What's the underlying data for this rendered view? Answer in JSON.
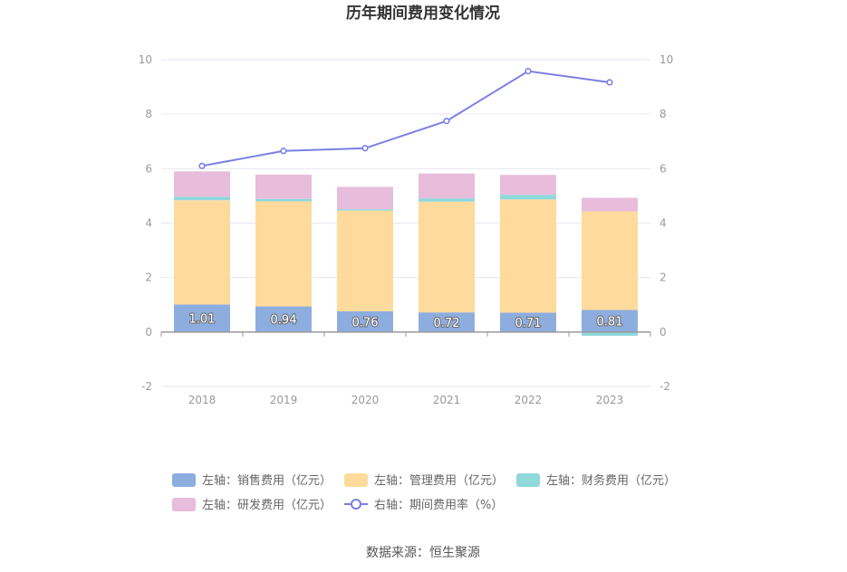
{
  "chart_data": {
    "type": "bar",
    "stacked": true,
    "title": "历年期间费用变化情况",
    "categories": [
      "2018",
      "2019",
      "2020",
      "2021",
      "2022",
      "2023"
    ],
    "y_left": {
      "min": -2,
      "max": 10,
      "ticks": [
        -2,
        0,
        2,
        4,
        6,
        8,
        10
      ]
    },
    "y_right": {
      "min": -2,
      "max": 10,
      "ticks": [
        -2,
        0,
        2,
        4,
        6,
        8,
        10
      ]
    },
    "grid": true,
    "legend_position": "bottom",
    "series": [
      {
        "name": "左轴：销售费用（亿元）",
        "type": "bar",
        "axis": "left",
        "color": "#8eaddf",
        "values": [
          1.01,
          0.94,
          0.76,
          0.72,
          0.71,
          0.81
        ],
        "show_labels": true
      },
      {
        "name": "左轴：管理费用（亿元）",
        "type": "bar",
        "axis": "left",
        "color": "#fedb9c",
        "values": [
          3.83,
          3.86,
          3.7,
          4.07,
          4.16,
          3.62
        ],
        "show_labels": false
      },
      {
        "name": "左轴：财务费用（亿元）",
        "type": "bar",
        "axis": "left",
        "color": "#8fd8dc",
        "values": [
          0.13,
          0.09,
          0.05,
          0.12,
          0.17,
          -0.14
        ],
        "show_labels": false
      },
      {
        "name": "左轴：研发费用（亿元）",
        "type": "bar",
        "axis": "left",
        "color": "#e8bcdb",
        "values": [
          0.93,
          0.89,
          0.82,
          0.91,
          0.73,
          0.5
        ],
        "show_labels": false
      },
      {
        "name": "右轴：期间费用率（%）",
        "type": "line",
        "axis": "right",
        "color": "#7b7fe3",
        "values": [
          6.1,
          6.65,
          6.75,
          7.75,
          9.58,
          9.17
        ]
      }
    ]
  },
  "source_label": "数据来源：恒生聚源"
}
